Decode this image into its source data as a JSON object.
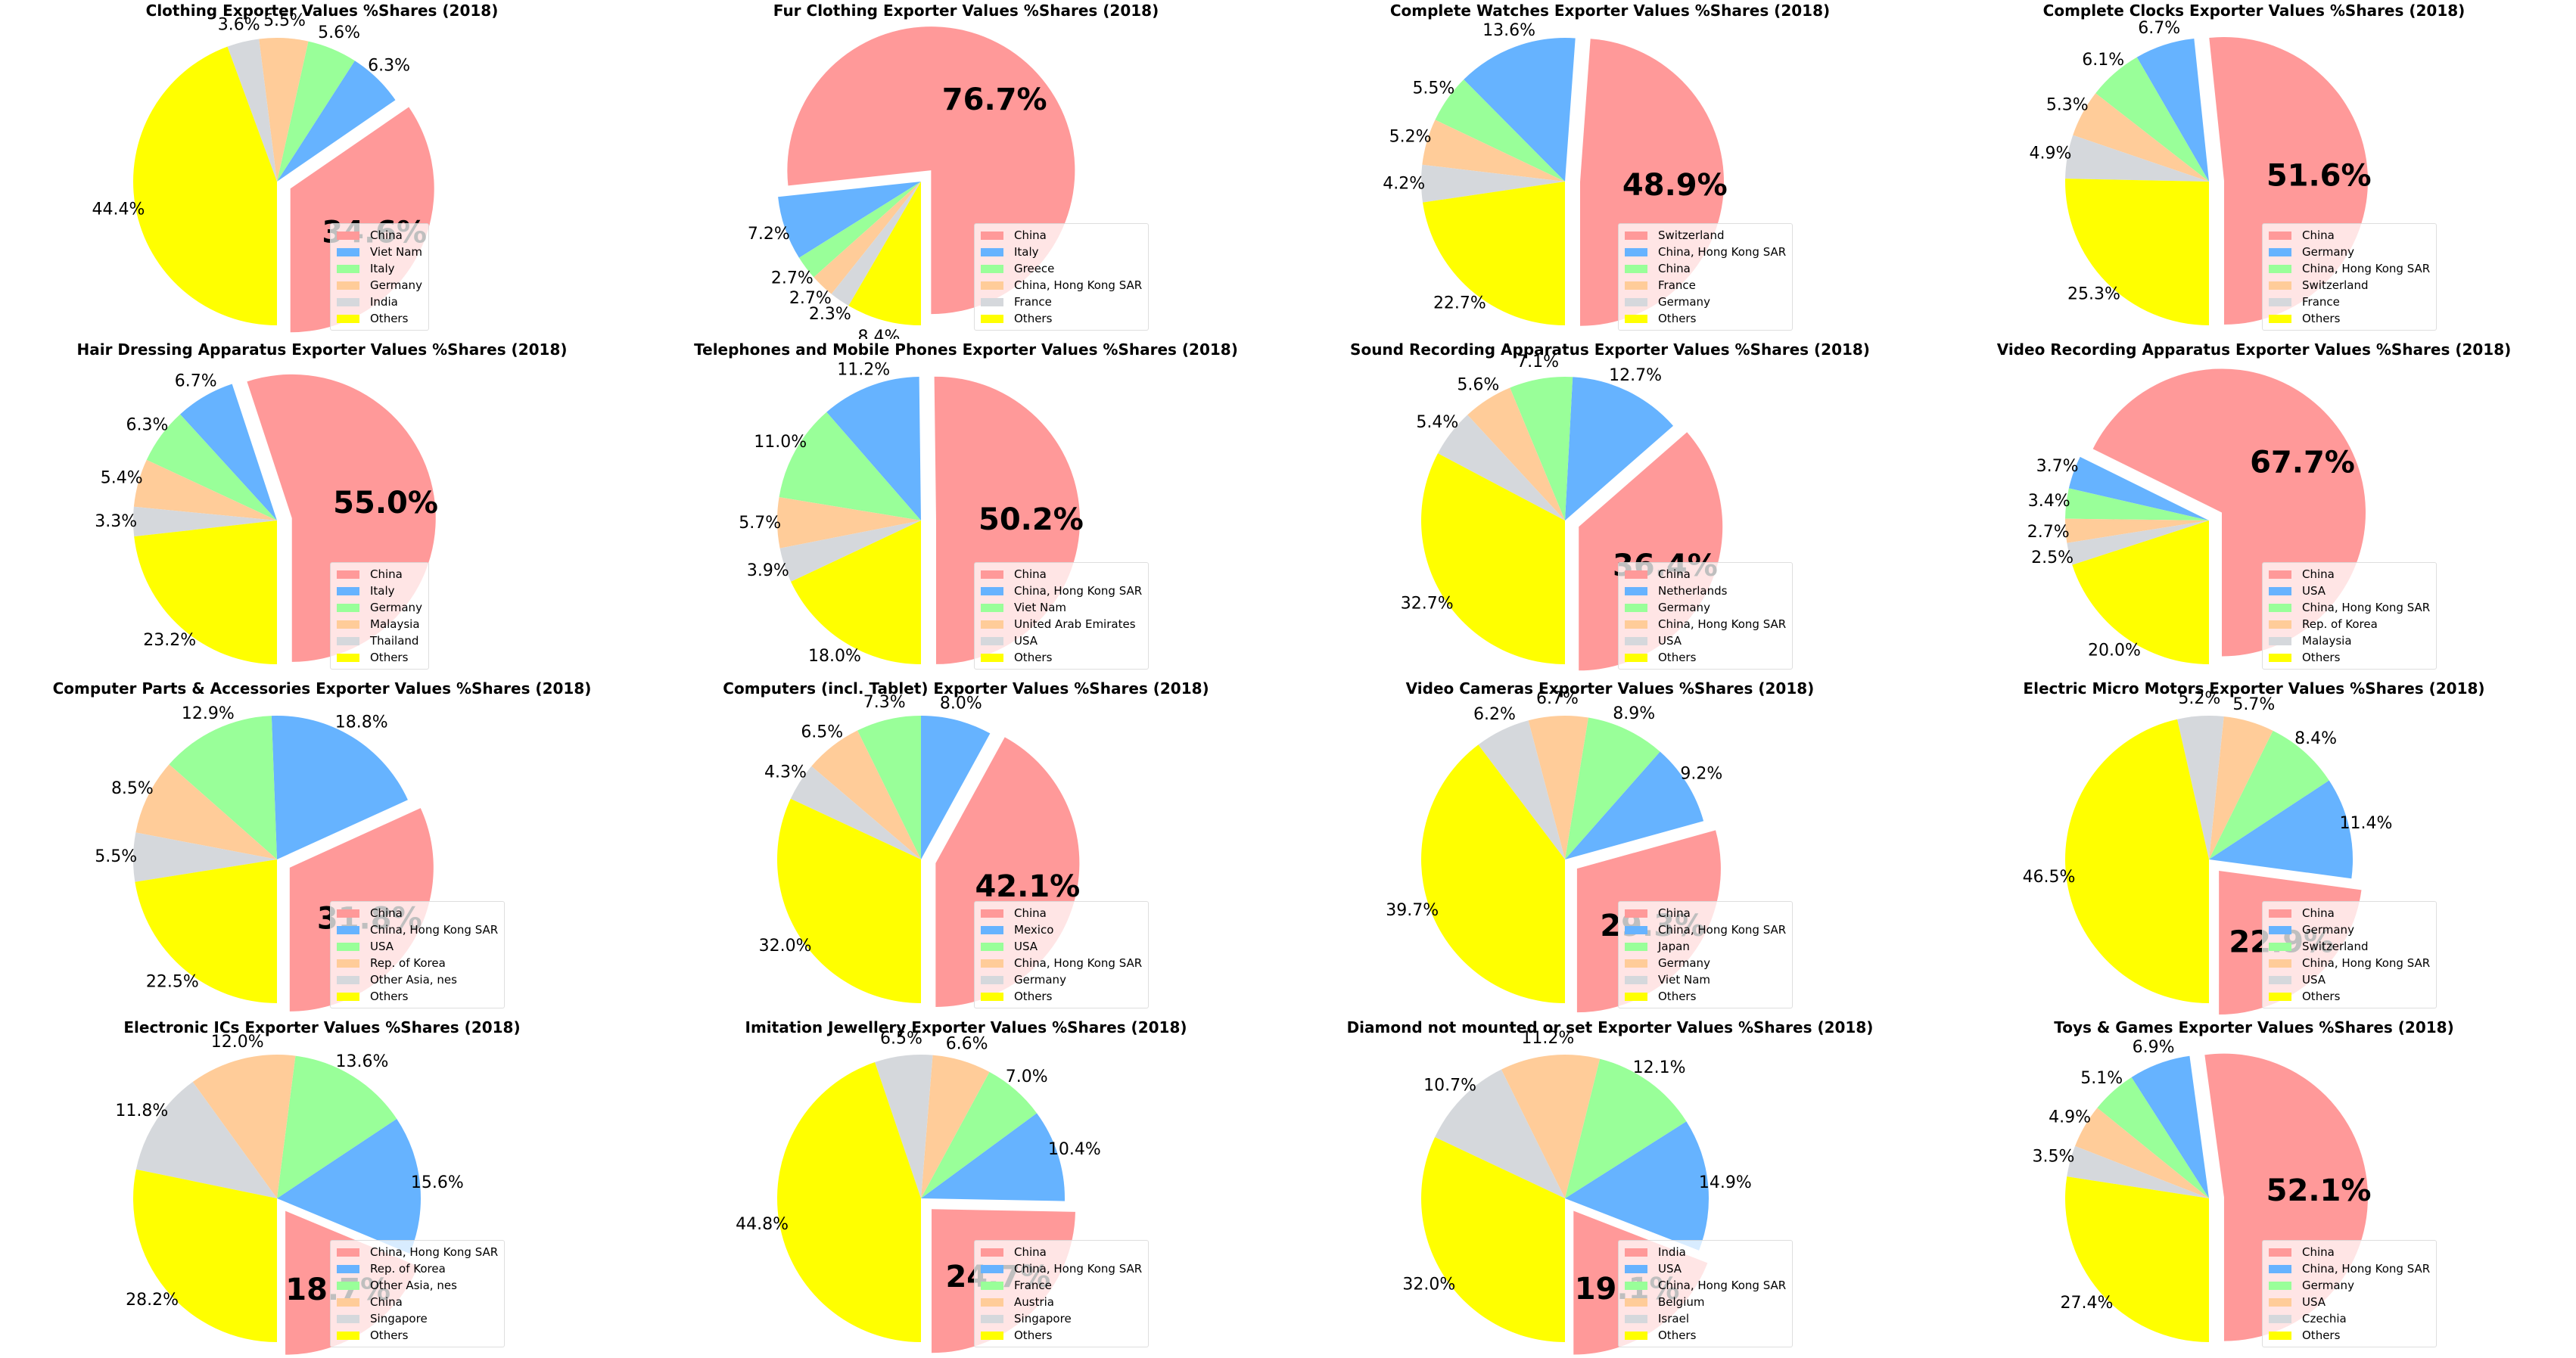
{
  "chart_data": [
    {
      "type": "pie",
      "title": "Clothing Exporter Values %Shares (2018)",
      "labels": [
        "China",
        "Viet Nam",
        "Italy",
        "Germany",
        "India",
        "Others"
      ],
      "values": [
        34.6,
        6.3,
        5.6,
        5.5,
        3.6,
        44.4
      ],
      "value_labels": [
        "34.6%",
        "6.3%",
        "5.6%",
        "5.5%",
        "3.6%",
        "44.4%"
      ]
    },
    {
      "type": "pie",
      "title": "Fur Clothing Exporter Values %Shares (2018)",
      "labels": [
        "China",
        "Italy",
        "Greece",
        "China, Hong Kong SAR",
        "France",
        "Others"
      ],
      "values": [
        76.7,
        7.2,
        2.7,
        2.7,
        2.3,
        8.4
      ],
      "value_labels": [
        "76.7%",
        "7.2%",
        "2.7%",
        "2.7%",
        "2.3%",
        "8.4%"
      ]
    },
    {
      "type": "pie",
      "title": "Complete Watches Exporter Values %Shares (2018)",
      "labels": [
        "Switzerland",
        "China, Hong Kong SAR",
        "China",
        "France",
        "Germany",
        "Others"
      ],
      "values": [
        48.9,
        13.6,
        5.5,
        5.2,
        4.2,
        22.7
      ],
      "value_labels": [
        "48.9%",
        "13.6%",
        "5.5%",
        "5.2%",
        "4.2%",
        "22.7%"
      ]
    },
    {
      "type": "pie",
      "title": "Complete Clocks Exporter Values %Shares (2018)",
      "labels": [
        "China",
        "Germany",
        "China, Hong Kong SAR",
        "Switzerland",
        "France",
        "Others"
      ],
      "values": [
        51.6,
        6.7,
        6.1,
        5.3,
        4.9,
        25.3
      ],
      "value_labels": [
        "51.6%",
        "6.7%",
        "6.1%",
        "5.3%",
        "4.9%",
        "25.3%"
      ]
    },
    {
      "type": "pie",
      "title": "Hair Dressing Apparatus Exporter Values %Shares (2018)",
      "labels": [
        "China",
        "Italy",
        "Germany",
        "Malaysia",
        "Thailand",
        "Others"
      ],
      "values": [
        55.0,
        6.7,
        6.3,
        5.4,
        3.3,
        23.2
      ],
      "value_labels": [
        "55.0%",
        "6.7%",
        "6.3%",
        "5.4%",
        "3.3%",
        "23.2%"
      ]
    },
    {
      "type": "pie",
      "title": "Telephones and Mobile Phones Exporter Values %Shares (2018)",
      "labels": [
        "China",
        "China, Hong Kong SAR",
        "Viet Nam",
        "United Arab Emirates",
        "USA",
        "Others"
      ],
      "values": [
        50.2,
        11.2,
        11.0,
        5.7,
        3.9,
        18.0
      ],
      "value_labels": [
        "50.2%",
        "11.2%",
        "11.0%",
        "5.7%",
        "3.9%",
        "18.0%"
      ]
    },
    {
      "type": "pie",
      "title": "Sound Recording Apparatus Exporter Values %Shares (2018)",
      "labels": [
        "China",
        "Netherlands",
        "Germany",
        "China, Hong Kong SAR",
        "USA",
        "Others"
      ],
      "values": [
        36.4,
        12.7,
        7.1,
        5.6,
        5.4,
        32.7
      ],
      "value_labels": [
        "36.4%",
        "12.7%",
        "7.1%",
        "5.6%",
        "5.4%",
        "32.7%"
      ]
    },
    {
      "type": "pie",
      "title": "Video Recording Apparatus Exporter Values %Shares (2018)",
      "labels": [
        "China",
        "USA",
        "China, Hong Kong SAR",
        "Rep. of Korea",
        "Malaysia",
        "Others"
      ],
      "values": [
        67.7,
        3.7,
        3.4,
        2.7,
        2.5,
        20.0
      ],
      "value_labels": [
        "67.7%",
        "3.7%",
        "3.4%",
        "2.7%",
        "2.5%",
        "20.0%"
      ]
    },
    {
      "type": "pie",
      "title": "Computer Parts & Accessories Exporter Values %Shares (2018)",
      "labels": [
        "China",
        "China, Hong Kong SAR",
        "USA",
        "Rep. of Korea",
        "Other Asia, nes",
        "Others"
      ],
      "values": [
        31.8,
        18.8,
        12.9,
        8.5,
        5.5,
        22.5
      ],
      "value_labels": [
        "31.8%",
        "18.8%",
        "12.9%",
        "8.5%",
        "5.5%",
        "22.5%"
      ]
    },
    {
      "type": "pie",
      "title": "Computers (incl. Tablet) Exporter Values %Shares (2018)",
      "labels": [
        "China",
        "Mexico",
        "USA",
        "China, Hong Kong SAR",
        "Germany",
        "Others"
      ],
      "values": [
        42.1,
        8.0,
        7.3,
        6.5,
        4.3,
        32.0
      ],
      "value_labels": [
        "42.1%",
        "8.0%",
        "7.3%",
        "6.5%",
        "4.3%",
        "32.0%"
      ]
    },
    {
      "type": "pie",
      "title": "Video Cameras Exporter Values %Shares (2018)",
      "labels": [
        "China",
        "China, Hong Kong SAR",
        "Japan",
        "Germany",
        "Viet Nam",
        "Others"
      ],
      "values": [
        29.3,
        9.2,
        8.9,
        6.7,
        6.2,
        39.7
      ],
      "value_labels": [
        "29.3%",
        "9.2%",
        "8.9%",
        "6.7%",
        "6.2%",
        "39.7%"
      ]
    },
    {
      "type": "pie",
      "title": "Electric Micro Motors Exporter Values %Shares (2018)",
      "labels": [
        "China",
        "Germany",
        "Switzerland",
        "China, Hong Kong SAR",
        "USA",
        "Others"
      ],
      "values": [
        22.9,
        11.4,
        8.4,
        5.7,
        5.2,
        46.5
      ],
      "value_labels": [
        "22.9%",
        "11.4%",
        "8.4%",
        "5.7%",
        "5.2%",
        "46.5%"
      ]
    },
    {
      "type": "pie",
      "title": "Electronic ICs Exporter Values %Shares (2018)",
      "labels": [
        "China, Hong Kong SAR",
        "Rep. of Korea",
        "Other Asia, nes",
        "China",
        "Singapore",
        "Others"
      ],
      "values": [
        18.7,
        15.6,
        13.6,
        12.0,
        11.8,
        28.2
      ],
      "value_labels": [
        "18.7%",
        "15.6%",
        "13.6%",
        "12.0%",
        "11.8%",
        "28.2%"
      ]
    },
    {
      "type": "pie",
      "title": "Imitation Jewellery Exporter Values %Shares (2018)",
      "labels": [
        "China",
        "China, Hong Kong SAR",
        "France",
        "Austria",
        "Singapore",
        "Others"
      ],
      "values": [
        24.7,
        10.4,
        7.0,
        6.6,
        6.5,
        44.8
      ],
      "value_labels": [
        "24.7%",
        "10.4%",
        "7.0%",
        "6.6%",
        "6.5%",
        "44.8%"
      ]
    },
    {
      "type": "pie",
      "title": "Diamond not mounted or set Exporter Values %Shares (2018)",
      "labels": [
        "India",
        "USA",
        "China, Hong Kong SAR",
        "Belgium",
        "Israel",
        "Others"
      ],
      "values": [
        19.1,
        14.9,
        12.1,
        11.2,
        10.7,
        32.0
      ],
      "value_labels": [
        "19.1%",
        "14.9%",
        "12.1%",
        "11.2%",
        "10.7%",
        "32.0%"
      ]
    },
    {
      "type": "pie",
      "title": "Toys & Games Exporter Values %Shares (2018)",
      "labels": [
        "China",
        "China, Hong Kong SAR",
        "Germany",
        "USA",
        "Czechia",
        "Others"
      ],
      "values": [
        52.1,
        6.9,
        5.1,
        4.9,
        3.5,
        27.4
      ],
      "value_labels": [
        "52.1%",
        "6.9%",
        "5.1%",
        "4.9%",
        "3.5%",
        "27.4%"
      ]
    }
  ],
  "colors": [
    "#ff9999",
    "#66b3ff",
    "#99ff99",
    "#ffcc99",
    "#d5d8dc",
    "#ffff00"
  ],
  "legend_location": "lower-right",
  "explode_first_slice": true
}
